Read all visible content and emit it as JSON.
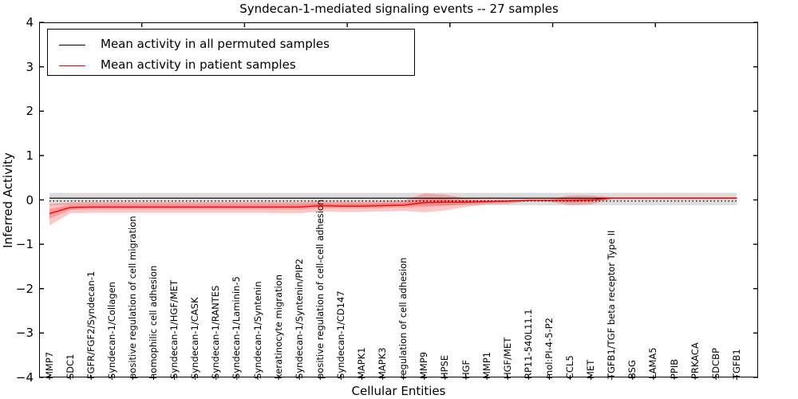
{
  "chart_data": {
    "type": "line",
    "title": "Syndecan-1-mediated signaling events -- 27 samples",
    "xlabel": "Cellular Entities",
    "ylabel": "Inferred Activity",
    "ylim": [
      -4,
      4
    ],
    "yticks": [
      "4",
      "3",
      "2",
      "1",
      "0",
      "−1",
      "−2",
      "−3",
      "−4"
    ],
    "grid": false,
    "legend_position": "upper left",
    "zero_line_style": "dotted",
    "categories": [
      "MMP7",
      "SDC1",
      "FGFR/FGF2/Syndecan-1",
      "Syndecan-1/Collagen",
      "positive regulation of cell migration",
      "homophilic cell adhesion",
      "Syndecan-1/HGF/MET",
      "Syndecan-1/CASK",
      "Syndecan-1/RANTES",
      "Syndecan-1/Laminin-5",
      "Syndecan-1/Syntenin",
      "keratinocyte migration",
      "Syndecan-1/Syntenin/PIP2",
      "positive regulation of cell-cell adhesion",
      "Syndecan-1/CD147",
      "MAPK1",
      "MAPK3",
      "regulation of cell adhesion",
      "MMP9",
      "HPSE",
      "HGF",
      "MMP1",
      "HGF/MET",
      "RP11-540L11.1",
      "mol:PI-4-5-P2",
      "CCL5",
      "MET",
      "TGFB1/TGF beta receptor Type II",
      "BSG",
      "LAMA5",
      "PPIB",
      "PRKACA",
      "SDCBP",
      "TGFB1"
    ],
    "series": [
      {
        "name": "Mean activity in all permuted samples",
        "color": "#000000",
        "band_color": "#00000022",
        "values": [
          0.04,
          0.04,
          0.04,
          0.04,
          0.04,
          0.04,
          0.04,
          0.04,
          0.04,
          0.04,
          0.04,
          0.04,
          0.04,
          0.04,
          0.04,
          0.04,
          0.04,
          0.04,
          0.04,
          0.04,
          0.04,
          0.04,
          0.04,
          0.04,
          0.04,
          0.04,
          0.04,
          0.04,
          0.04,
          0.04,
          0.04,
          0.04,
          0.04,
          0.04
        ],
        "band_upper": [
          0.16,
          0.16,
          0.16,
          0.16,
          0.16,
          0.16,
          0.16,
          0.16,
          0.16,
          0.16,
          0.16,
          0.16,
          0.16,
          0.16,
          0.16,
          0.16,
          0.16,
          0.16,
          0.16,
          0.16,
          0.16,
          0.16,
          0.16,
          0.16,
          0.16,
          0.16,
          0.16,
          0.16,
          0.16,
          0.16,
          0.16,
          0.16,
          0.16,
          0.16
        ],
        "band_lower": [
          -0.12,
          -0.12,
          -0.12,
          -0.12,
          -0.12,
          -0.12,
          -0.12,
          -0.12,
          -0.12,
          -0.12,
          -0.12,
          -0.12,
          -0.12,
          -0.12,
          -0.12,
          -0.12,
          -0.12,
          -0.12,
          -0.12,
          -0.12,
          -0.12,
          -0.12,
          -0.12,
          -0.12,
          -0.12,
          -0.12,
          -0.12,
          -0.12,
          -0.12,
          -0.12,
          -0.12,
          -0.12,
          -0.12,
          -0.12
        ]
      },
      {
        "name": "Mean activity in patient samples",
        "color": "#ff0000",
        "band_color": "#ff000038",
        "values": [
          -0.31,
          -0.17,
          -0.16,
          -0.16,
          -0.16,
          -0.16,
          -0.16,
          -0.16,
          -0.16,
          -0.16,
          -0.16,
          -0.16,
          -0.16,
          -0.13,
          -0.14,
          -0.14,
          -0.13,
          -0.12,
          -0.06,
          -0.05,
          -0.05,
          -0.04,
          -0.03,
          -0.01,
          -0.01,
          -0.01,
          0.0,
          0.04,
          0.04,
          0.04,
          0.04,
          0.04,
          0.04,
          0.04
        ],
        "band_upper": [
          -0.09,
          -0.06,
          -0.05,
          -0.05,
          -0.05,
          -0.05,
          -0.05,
          -0.05,
          -0.05,
          -0.05,
          -0.05,
          -0.05,
          -0.05,
          -0.03,
          -0.04,
          -0.04,
          -0.03,
          -0.02,
          0.15,
          0.12,
          0.03,
          0.01,
          0.01,
          0.01,
          0.01,
          0.1,
          0.1,
          0.06,
          0.06,
          0.06,
          0.06,
          0.06,
          0.06,
          0.06
        ],
        "band_lower": [
          -0.58,
          -0.3,
          -0.29,
          -0.29,
          -0.29,
          -0.29,
          -0.29,
          -0.29,
          -0.29,
          -0.29,
          -0.29,
          -0.3,
          -0.3,
          -0.26,
          -0.27,
          -0.27,
          -0.26,
          -0.25,
          -0.28,
          -0.24,
          -0.16,
          -0.1,
          -0.09,
          -0.03,
          -0.04,
          -0.12,
          -0.1,
          0.02,
          0.02,
          0.02,
          0.02,
          0.02,
          0.02,
          0.02
        ]
      }
    ],
    "legend": {
      "entries": [
        {
          "label": "Mean activity in all permuted samples",
          "color": "#000000"
        },
        {
          "label": "Mean activity in patient samples",
          "color": "#ff0000"
        }
      ]
    }
  }
}
